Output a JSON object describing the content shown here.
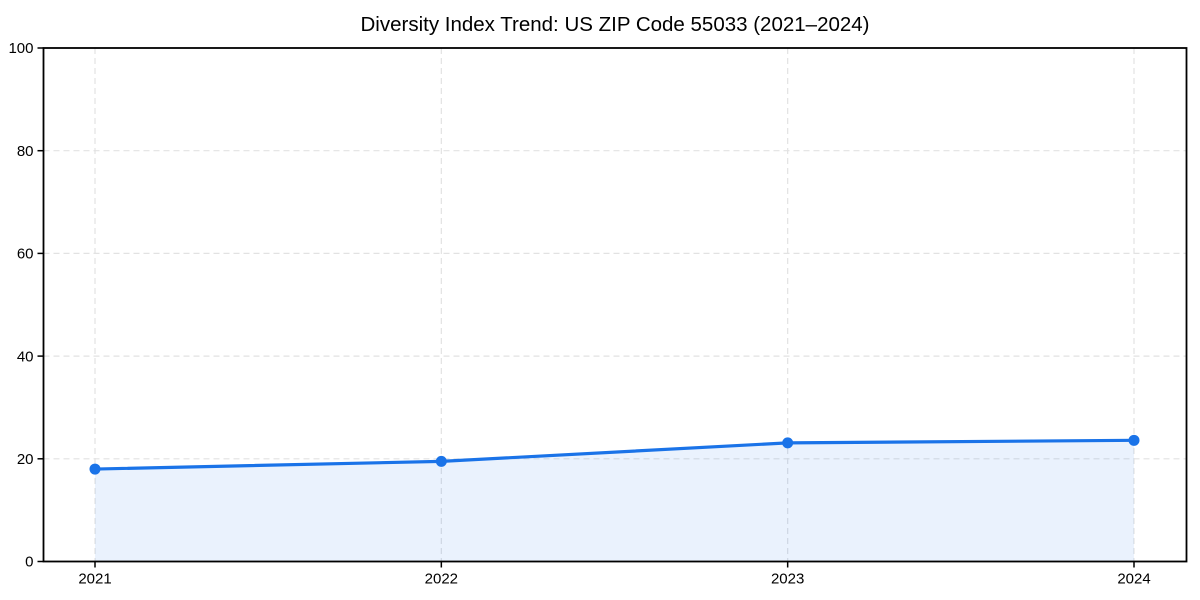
{
  "chart_data": {
    "type": "line",
    "title": "Diversity Index Trend: US ZIP Code 55033 (2021–2024)",
    "x_categories": [
      "2021",
      "2022",
      "2023",
      "2024"
    ],
    "series": [
      {
        "name": "Diversity Index",
        "values": [
          18.0,
          19.5,
          23.1,
          23.6
        ]
      }
    ],
    "xlabel": "",
    "ylabel": "",
    "ylim": [
      0,
      100
    ],
    "yticks": [
      0,
      20,
      40,
      60,
      80,
      100
    ],
    "grid": "dashed-both-axes",
    "legend_position": "none",
    "area_fill": true,
    "colors": {
      "line": "#1a73e8",
      "marker": "#1a73e8",
      "area_fill": "rgba(26,115,232,0.09)",
      "grid": "#e2e2e2",
      "spine": "#000000",
      "text": "#000000",
      "background": "#ffffff"
    }
  }
}
